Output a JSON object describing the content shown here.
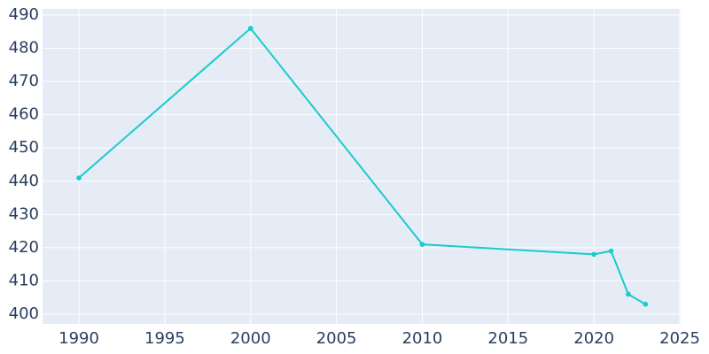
{
  "chart_data": {
    "type": "line",
    "x": [
      1990,
      2000,
      2010,
      2020,
      2021,
      2022,
      2023
    ],
    "series": [
      {
        "color": "#17cccc",
        "values": [
          441,
          486,
          421,
          418,
          419,
          406,
          403
        ]
      }
    ],
    "xlim": [
      1987.88,
      2025.05
    ],
    "xticks": [
      1990,
      1995,
      2000,
      2005,
      2010,
      2015,
      2020,
      2025
    ],
    "ylim": [
      397.07,
      491.86
    ],
    "yticks": [
      400,
      410,
      420,
      430,
      440,
      450,
      460,
      470,
      480,
      490
    ],
    "grid": true
  }
}
